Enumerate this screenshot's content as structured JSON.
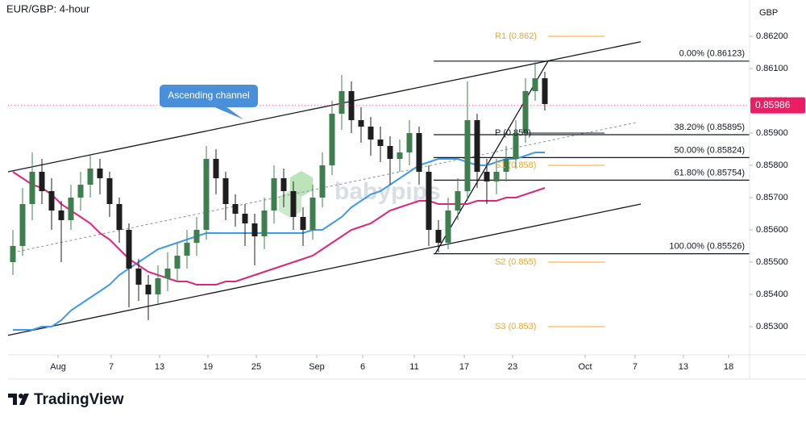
{
  "chart_data": {
    "type": "candlestick",
    "title": "EUR/GBP: 4-hour",
    "y_axis_label": "GBP",
    "xlim": [
      -0.5,
      76.17
    ],
    "ylim": [
      0.852125,
      0.863125
    ],
    "grid": false,
    "xticks": [
      {
        "value": 4.67,
        "label": "Aug"
      },
      {
        "value": 10.17,
        "label": "7"
      },
      {
        "value": 15.17,
        "label": "13"
      },
      {
        "value": 20.17,
        "label": "19"
      },
      {
        "value": 25.17,
        "label": "25"
      },
      {
        "value": 31.42,
        "label": "Sep"
      },
      {
        "value": 36.17,
        "label": "6"
      },
      {
        "value": 41.5,
        "label": "11"
      },
      {
        "value": 46.67,
        "label": "17"
      },
      {
        "value": 51.67,
        "label": "23"
      },
      {
        "value": 59.17,
        "label": "Oct"
      },
      {
        "value": 64.33,
        "label": "7"
      },
      {
        "value": 69.33,
        "label": "13"
      },
      {
        "value": 74,
        "label": "18"
      }
    ],
    "yticks": [
      {
        "value": 0.862,
        "label": "0.86200"
      },
      {
        "value": 0.861,
        "label": "0.86100"
      },
      {
        "value": 0.86,
        "label": "0.86000"
      },
      {
        "value": 0.859,
        "label": "0.85900"
      },
      {
        "value": 0.858,
        "label": "0.85800"
      },
      {
        "value": 0.857,
        "label": "0.85700"
      },
      {
        "value": 0.856,
        "label": "0.85600"
      },
      {
        "value": 0.855,
        "label": "0.85500"
      },
      {
        "value": 0.854,
        "label": "0.85400"
      },
      {
        "value": 0.853,
        "label": "0.85300"
      }
    ],
    "up_color": "#3f7f4f",
    "down_color": "#1e1e1e",
    "x": [
      0,
      1,
      2,
      3,
      4,
      5,
      6,
      7,
      8,
      9,
      10,
      11,
      12,
      13,
      14,
      15,
      16,
      17,
      18,
      19,
      20,
      21,
      22,
      23,
      24,
      25,
      26,
      27,
      28,
      29,
      30,
      31,
      32,
      33,
      34,
      35,
      36,
      37,
      38,
      39,
      40,
      41,
      42,
      43,
      44,
      45,
      46,
      47,
      48,
      49,
      50,
      51,
      52,
      53,
      54,
      55
    ],
    "open": [
      0.855,
      0.8555,
      0.8568,
      0.8578,
      0.8572,
      0.8566,
      0.8563,
      0.857,
      0.8574,
      0.8579,
      0.8576,
      0.8568,
      0.856,
      0.8548,
      0.8543,
      0.854,
      0.8545,
      0.8548,
      0.8552,
      0.8556,
      0.856,
      0.8582,
      0.8576,
      0.8568,
      0.8565,
      0.8562,
      0.8558,
      0.8566,
      0.8576,
      0.8572,
      0.8564,
      0.856,
      0.857,
      0.858,
      0.8596,
      0.8603,
      0.8594,
      0.8592,
      0.8588,
      0.8586,
      0.8582,
      0.8584,
      0.859,
      0.8578,
      0.856,
      0.8556,
      0.8566,
      0.8572,
      0.8594,
      0.8578,
      0.8575,
      0.8578,
      0.8582,
      0.859,
      0.8603,
      0.8607
    ],
    "high": [
      0.856,
      0.8573,
      0.8584,
      0.8582,
      0.8576,
      0.8569,
      0.8574,
      0.8578,
      0.8583,
      0.8582,
      0.8578,
      0.857,
      0.8562,
      0.8551,
      0.8546,
      0.8549,
      0.8553,
      0.8556,
      0.856,
      0.8564,
      0.8586,
      0.8585,
      0.8578,
      0.8571,
      0.8568,
      0.8565,
      0.857,
      0.858,
      0.8579,
      0.8575,
      0.8567,
      0.8574,
      0.8584,
      0.86,
      0.8608,
      0.8606,
      0.8598,
      0.8595,
      0.8592,
      0.8589,
      0.8588,
      0.8594,
      0.8592,
      0.858,
      0.8563,
      0.857,
      0.8576,
      0.8606,
      0.8596,
      0.8582,
      0.8582,
      0.8586,
      0.8594,
      0.8607,
      0.8612,
      0.8609
    ],
    "low": [
      0.8546,
      0.8552,
      0.8563,
      0.8568,
      0.856,
      0.855,
      0.856,
      0.8566,
      0.857,
      0.8571,
      0.8564,
      0.8556,
      0.8536,
      0.8538,
      0.8532,
      0.8537,
      0.8541,
      0.8544,
      0.8548,
      0.8552,
      0.8557,
      0.8571,
      0.8563,
      0.8561,
      0.8555,
      0.8549,
      0.8554,
      0.8562,
      0.8567,
      0.856,
      0.8555,
      0.8557,
      0.8567,
      0.8577,
      0.8591,
      0.859,
      0.8587,
      0.8583,
      0.8581,
      0.8574,
      0.8578,
      0.858,
      0.8574,
      0.8555,
      0.8553,
      0.8554,
      0.8563,
      0.8569,
      0.8573,
      0.8568,
      0.8571,
      0.8575,
      0.8579,
      0.8587,
      0.86,
      0.8597
    ],
    "close": [
      0.8555,
      0.8568,
      0.8578,
      0.8572,
      0.8566,
      0.8563,
      0.857,
      0.8574,
      0.8579,
      0.8576,
      0.8568,
      0.856,
      0.8548,
      0.8543,
      0.854,
      0.8545,
      0.8548,
      0.8552,
      0.8556,
      0.856,
      0.8582,
      0.8576,
      0.8568,
      0.8565,
      0.8562,
      0.8558,
      0.8566,
      0.8576,
      0.8572,
      0.8564,
      0.856,
      0.857,
      0.858,
      0.8596,
      0.8603,
      0.8594,
      0.8592,
      0.8588,
      0.8586,
      0.8582,
      0.8584,
      0.859,
      0.8578,
      0.856,
      0.8556,
      0.8566,
      0.8572,
      0.8594,
      0.8578,
      0.8575,
      0.8578,
      0.8582,
      0.859,
      0.8603,
      0.8607,
      0.8599
    ],
    "moving_averages": [
      {
        "color": "#3d9be9",
        "values": [
          0.8529,
          0.8529,
          0.8529,
          0.853,
          0.853,
          0.8532,
          0.8535,
          0.8537,
          0.8539,
          0.8541,
          0.8543,
          0.8546,
          0.8548,
          0.855,
          0.8552,
          0.8554,
          0.8555,
          0.8556,
          0.8557,
          0.8558,
          0.8559,
          0.8559,
          0.8559,
          0.8559,
          0.8559,
          0.8559,
          0.8559,
          0.8559,
          0.8559,
          0.8559,
          0.8559,
          0.856,
          0.856,
          0.8562,
          0.8564,
          0.8567,
          0.8569,
          0.8571,
          0.8572,
          0.8574,
          0.8576,
          0.8578,
          0.858,
          0.8581,
          0.8582,
          0.8582,
          0.8582,
          0.8581,
          0.858,
          0.858,
          0.8581,
          0.8582,
          0.8582,
          0.8583,
          0.8584,
          0.8584
        ]
      },
      {
        "color": "#e0267a",
        "values": [
          0.8578,
          0.8576,
          0.8574,
          0.8573,
          0.8571,
          0.8568,
          0.8566,
          0.8564,
          0.8562,
          0.8559,
          0.8557,
          0.8554,
          0.8551,
          0.8549,
          0.8547,
          0.8546,
          0.8545,
          0.8544,
          0.8544,
          0.8543,
          0.8543,
          0.8543,
          0.8544,
          0.8544,
          0.8545,
          0.8546,
          0.8547,
          0.8548,
          0.8549,
          0.855,
          0.8551,
          0.8552,
          0.8554,
          0.8556,
          0.8558,
          0.856,
          0.8561,
          0.8562,
          0.8564,
          0.8566,
          0.8567,
          0.8568,
          0.8569,
          0.8569,
          0.8568,
          0.8568,
          0.8568,
          0.8568,
          0.8569,
          0.8569,
          0.8569,
          0.857,
          0.857,
          0.8571,
          0.8572,
          0.8573
        ]
      }
    ],
    "trendlines": [
      {
        "color": "#131722",
        "dashed": false,
        "x": [
          -0.5,
          64.92
        ],
        "y": [
          0.8578,
          0.86183
        ]
      },
      {
        "color": "#131722",
        "dashed": false,
        "x": [
          -0.5,
          64.92
        ],
        "y": [
          0.85273,
          0.8568
        ]
      },
      {
        "color": "#8a8f99",
        "dashed": true,
        "x": [
          0.5,
          64.5
        ],
        "y": [
          0.85533,
          0.85933
        ]
      },
      {
        "color": "#131722",
        "dashed": false,
        "x": [
          43.67,
          55.33
        ],
        "y": [
          0.85526,
          0.86123
        ]
      }
    ],
    "fib_start_x": 43.5,
    "fib_levels": [
      {
        "label": "0.00% (0.86123)",
        "value": 0.86123
      },
      {
        "label": "38.20% (0.85895)",
        "value": 0.85895
      },
      {
        "label": "50.00% (0.85824)",
        "value": 0.85824
      },
      {
        "label": "61.80% (0.85754)",
        "value": 0.85754
      },
      {
        "label": "100.00% (0.85526)",
        "value": 0.85526
      }
    ],
    "pivots": [
      {
        "label": "R1 (0.862)",
        "value": 0.862,
        "color": "#f5a623",
        "x": [
          55.33,
          61.17
        ]
      },
      {
        "label": "P (0.859)",
        "value": 0.859,
        "color": "#131722",
        "x": [
          52.83,
          61.17
        ]
      },
      {
        "label": "S1 (0.858)",
        "value": 0.858,
        "color": "#f5a623",
        "x": [
          55.33,
          61.17
        ]
      },
      {
        "label": "S2 (0.855)",
        "value": 0.855,
        "color": "#f5a623",
        "x": [
          55.33,
          61.17
        ]
      },
      {
        "label": "S3 (0.853)",
        "value": 0.853,
        "color": "#f5a623",
        "x": [
          55.33,
          61.17
        ]
      }
    ],
    "annotation": "Ascending channel",
    "last_price": 0.85986,
    "last_price_color": "#e91e63",
    "watermark": "babypips",
    "footer": "TradingView"
  }
}
